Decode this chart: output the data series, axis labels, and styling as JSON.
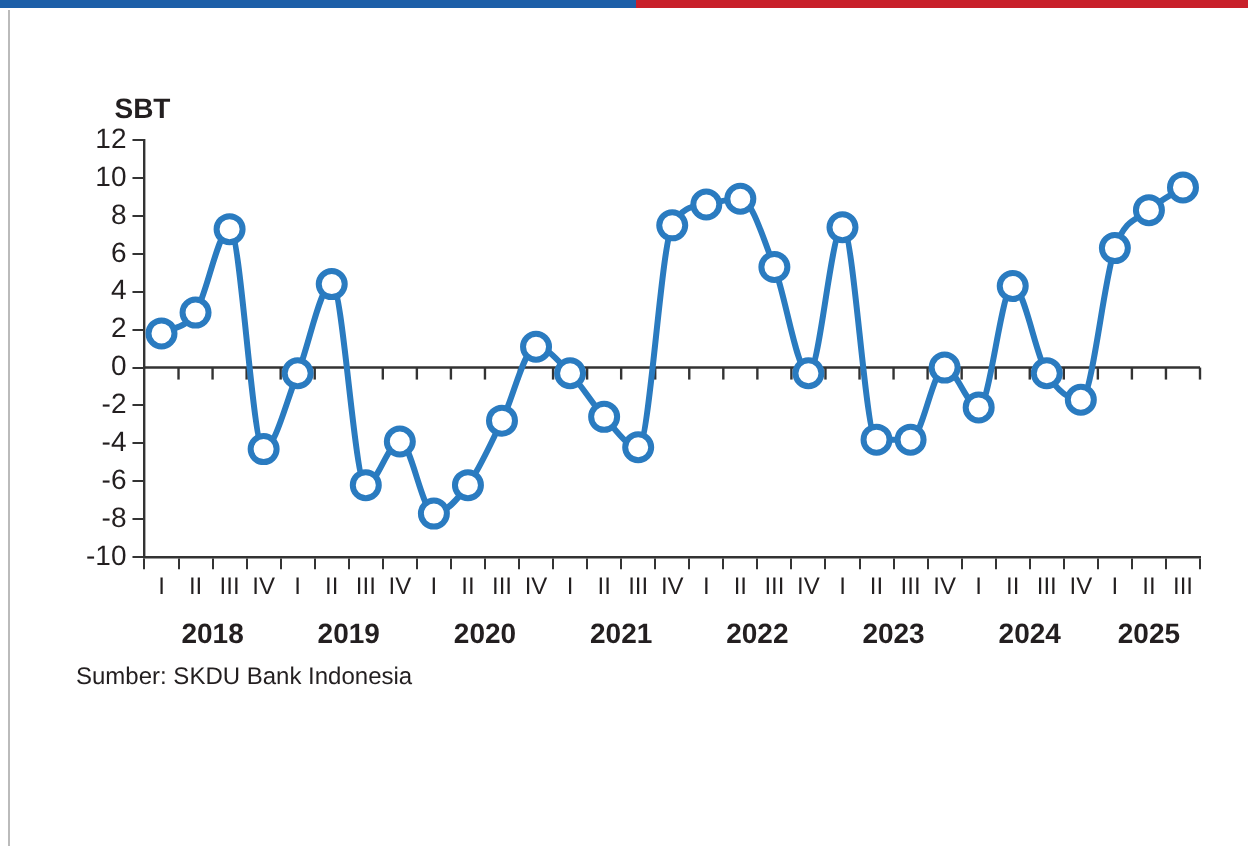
{
  "chart_data": {
    "type": "line",
    "ylabel": "SBT",
    "categories": [
      "I",
      "II",
      "III",
      "IV",
      "I",
      "II",
      "III",
      "IV",
      "I",
      "II",
      "III",
      "IV",
      "I",
      "II",
      "III",
      "IV",
      "I",
      "II",
      "III",
      "IV",
      "I",
      "II",
      "III",
      "IV",
      "I",
      "II",
      "III",
      "IV",
      "I",
      "II",
      "III"
    ],
    "series": [
      {
        "color": "#2a7bc0",
        "values": [
          1.8,
          2.9,
          7.3,
          -4.3,
          -0.3,
          4.4,
          -6.2,
          -3.9,
          -7.7,
          -6.2,
          -2.8,
          1.1,
          -0.3,
          -2.6,
          -4.2,
          7.5,
          8.6,
          8.9,
          5.3,
          -0.3,
          7.4,
          -3.8,
          -3.8,
          0.0,
          -2.1,
          4.3,
          -0.3,
          -1.7,
          6.3,
          8.3,
          9.5
        ]
      }
    ],
    "ylim": [
      -10,
      12
    ],
    "yticks": [
      -10,
      -8,
      -6,
      -4,
      -2,
      0,
      2,
      4,
      6,
      8,
      10,
      12
    ],
    "marker": "circle",
    "legend": false,
    "annotations": [
      "2018",
      "2019",
      "2020",
      "2021",
      "2022",
      "2023",
      "2024",
      "2025",
      "Sumber: SKDU Bank Indonesia"
    ]
  }
}
